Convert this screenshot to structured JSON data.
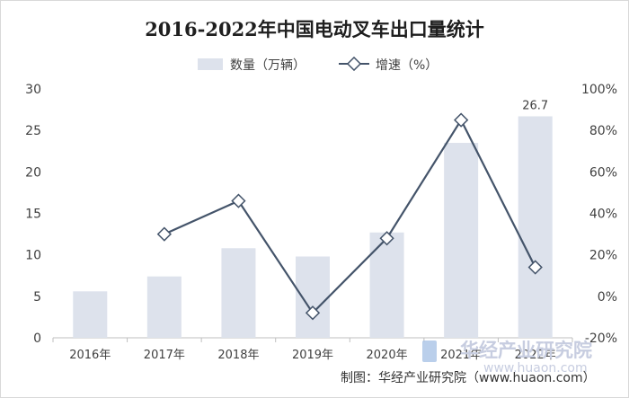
{
  "chart_data": {
    "type": "bar",
    "title": "2016-2022年中国电动叉车出口量统计",
    "categories": [
      "2016年",
      "2017年",
      "2018年",
      "2019年",
      "2020年",
      "2021年",
      "2022年"
    ],
    "series": [
      {
        "name": "数量（万辆）",
        "type": "bar",
        "axis": "left",
        "values": [
          5.6,
          7.4,
          10.8,
          9.8,
          12.7,
          23.5,
          26.7
        ],
        "color": "#dde2ec"
      },
      {
        "name": "增速（%）",
        "type": "line",
        "axis": "right",
        "values": [
          null,
          30,
          46,
          -8,
          28,
          85,
          14
        ],
        "color": "#44546a"
      }
    ],
    "data_labels": [
      {
        "category": "2022年",
        "text": "26.7"
      }
    ],
    "y_left": {
      "min": 0,
      "max": 30,
      "ticks": [
        "0",
        "5",
        "10",
        "15",
        "20",
        "25",
        "30"
      ]
    },
    "y_right": {
      "min": -20,
      "max": 100,
      "ticks": [
        "-20%",
        "0%",
        "20%",
        "40%",
        "60%",
        "80%",
        "100%"
      ]
    },
    "grid": false,
    "legend_position": "top"
  },
  "watermark": {
    "name": "华经产业研究院",
    "url": "www.huaon.com"
  },
  "source": "制图：华经产业研究院（www.huaon.com）"
}
